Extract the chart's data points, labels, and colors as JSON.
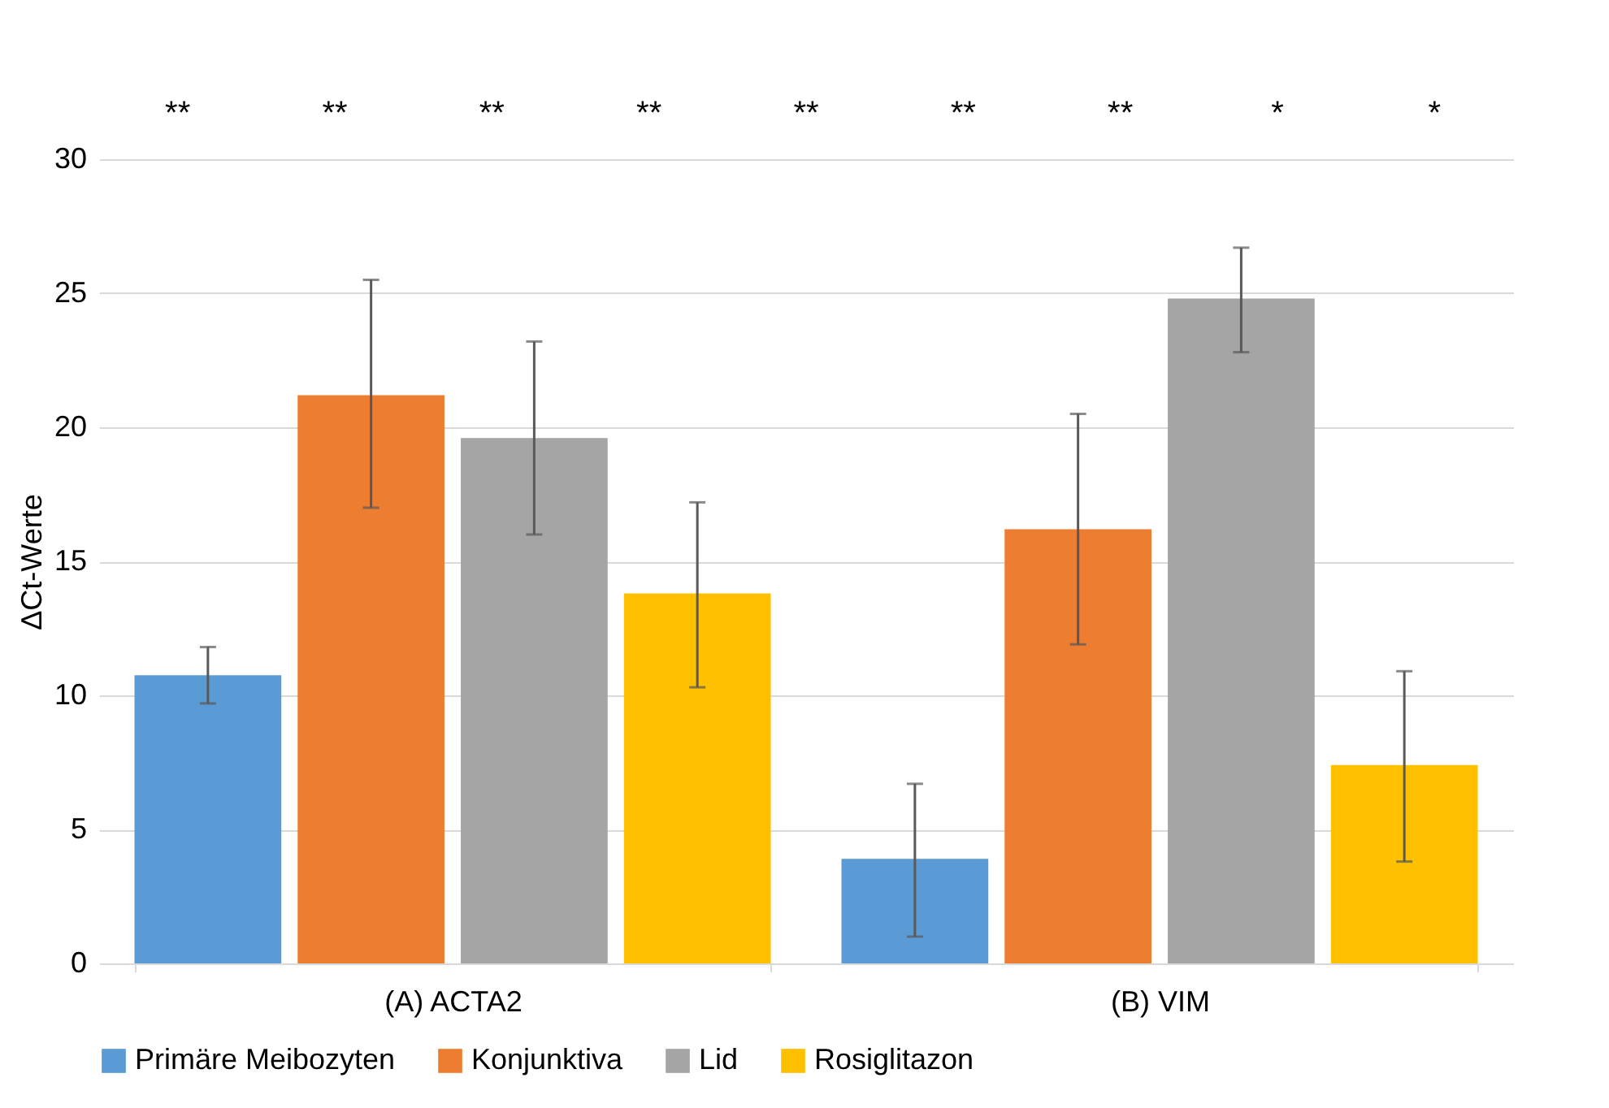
{
  "chart_data": {
    "type": "bar",
    "ylabel": "ΔCt-Werte",
    "categories": [
      "(A) ACTA2",
      "(B) VIM"
    ],
    "ylim": [
      0,
      30
    ],
    "yticks": [
      0,
      5,
      10,
      15,
      20,
      25,
      30
    ],
    "grid": "y",
    "legend": "bottom",
    "series": [
      {
        "name": "Primäre Meibozyten",
        "color": "#5b9bd5",
        "values": [
          10.75,
          3.9
        ],
        "errors": [
          [
            9.7,
            11.8
          ],
          [
            1.0,
            6.7
          ]
        ]
      },
      {
        "name": "Konjunktiva",
        "color": "#ed7d31",
        "values": [
          21.2,
          16.2
        ],
        "errors": [
          [
            17.0,
            25.5
          ],
          [
            11.9,
            20.5
          ]
        ]
      },
      {
        "name": "Lid",
        "color": "#a5a5a5",
        "values": [
          19.6,
          24.8
        ],
        "errors": [
          [
            16.0,
            23.2
          ],
          [
            22.8,
            26.7
          ]
        ]
      },
      {
        "name": "Rosiglitazon",
        "color": "#ffc000",
        "values": [
          13.8,
          7.4
        ],
        "errors": [
          [
            10.3,
            17.2
          ],
          [
            3.8,
            10.9
          ]
        ]
      }
    ],
    "annotations": [
      "**",
      "**",
      "**",
      "**",
      "**",
      "**",
      "**",
      "*",
      "*"
    ]
  }
}
